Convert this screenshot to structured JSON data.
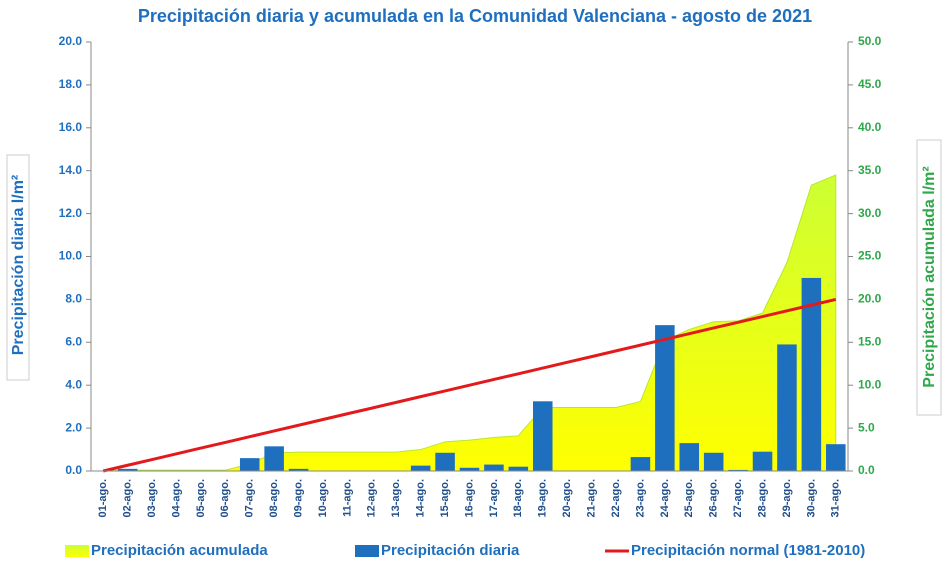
{
  "chart_data": {
    "type": "bar",
    "title": "Precipitación diaria y acumulada en la Comunidad Valenciana - agosto de 2021",
    "ylabel": "Precipitación diaria l/m²",
    "y2label": "Precipitación acumulada l/m²",
    "categories": [
      "01-ago.",
      "02-ago.",
      "03-ago.",
      "04-ago.",
      "05-ago.",
      "06-ago.",
      "07-ago.",
      "08-ago.",
      "09-ago.",
      "10-ago.",
      "11-ago.",
      "12-ago.",
      "13-ago.",
      "14-ago.",
      "15-ago.",
      "16-ago.",
      "17-ago.",
      "18-ago.",
      "19-ago.",
      "20-ago.",
      "21-ago.",
      "22-ago.",
      "23-ago.",
      "24-ago.",
      "25-ago.",
      "26-ago.",
      "27-ago.",
      "28-ago.",
      "29-ago.",
      "30-ago.",
      "31-ago."
    ],
    "series": [
      {
        "name": "Precipitación acumulada",
        "type": "area",
        "axis": "y2",
        "color": "#ccff33",
        "values": [
          0,
          0.1,
          0.1,
          0.1,
          0.1,
          0.1,
          0.8,
          2.1,
          2.2,
          2.2,
          2.2,
          2.2,
          2.2,
          2.5,
          3.4,
          3.6,
          3.9,
          4.1,
          7.4,
          7.4,
          7.4,
          7.4,
          8.1,
          15.2,
          16.5,
          17.4,
          17.5,
          18.4,
          24.3,
          33.3,
          34.5
        ]
      },
      {
        "name": "Precipitación diaria",
        "type": "bar",
        "color": "#1f6fbf",
        "values": [
          0,
          0.1,
          0,
          0,
          0,
          0,
          0.6,
          1.15,
          0.1,
          0,
          0,
          0,
          0,
          0.25,
          0.85,
          0.15,
          0.3,
          0.2,
          3.25,
          0,
          0,
          0,
          0.65,
          6.8,
          1.3,
          0.85,
          0.05,
          0.9,
          5.9,
          9.0,
          1.25
        ]
      },
      {
        "name": "Precipitación normal (1981-2010)",
        "type": "line",
        "axis": "y2",
        "color": "#e31a1c",
        "values": [
          0,
          0.67,
          1.33,
          2,
          2.67,
          3.33,
          4,
          4.67,
          5.33,
          6,
          6.67,
          7.33,
          8,
          8.67,
          9.33,
          10,
          10.67,
          11.33,
          12,
          12.67,
          13.33,
          14,
          14.67,
          15.33,
          16,
          16.67,
          17.33,
          18,
          18.67,
          19.33,
          20
        ]
      }
    ],
    "ylim": [
      0,
      20
    ],
    "yticks": [
      {
        "value": 0,
        "label": "0.0"
      },
      {
        "value": 2,
        "label": "2.0"
      },
      {
        "value": 4,
        "label": "4.0"
      },
      {
        "value": 6,
        "label": "6.0"
      },
      {
        "value": 8,
        "label": "8.0"
      },
      {
        "value": 10,
        "label": "10.0"
      },
      {
        "value": 12,
        "label": "12.0"
      },
      {
        "value": 14,
        "label": "14.0"
      },
      {
        "value": 16,
        "label": "16.0"
      },
      {
        "value": 18,
        "label": "18.0"
      },
      {
        "value": 20,
        "label": "20.0"
      }
    ],
    "y2lim": [
      0,
      50
    ],
    "y2ticks": [
      {
        "value": 0,
        "label": "0.0"
      },
      {
        "value": 5,
        "label": "5.0"
      },
      {
        "value": 10,
        "label": "10.0"
      },
      {
        "value": 15,
        "label": "15.0"
      },
      {
        "value": 20,
        "label": "20.0"
      },
      {
        "value": 25,
        "label": "25.0"
      },
      {
        "value": 30,
        "label": "30.0"
      },
      {
        "value": 35,
        "label": "35.0"
      },
      {
        "value": 40,
        "label": "40.0"
      },
      {
        "value": 45,
        "label": "45.0"
      },
      {
        "value": 50,
        "label": "50.0"
      }
    ],
    "legend": "bottom"
  }
}
